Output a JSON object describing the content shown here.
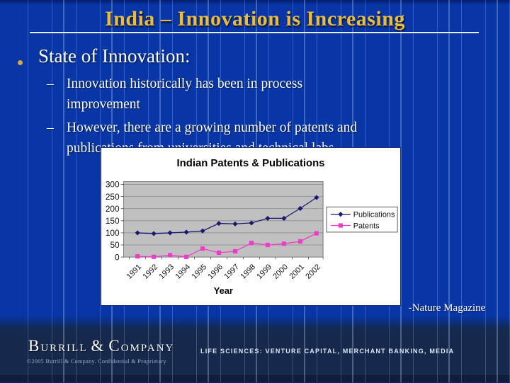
{
  "colors": {
    "background": "#0836A6",
    "footer_background": "#16294D",
    "title_gold": "#E9BC40",
    "underline": "#E8EDF8",
    "body_text": "#FFFFFF",
    "publications_series": "#191970",
    "patents_series": "#EE3CC8",
    "plot_background": "#C0C0C0"
  },
  "header": {
    "title": "India – Innovation is Increasing"
  },
  "content": {
    "bullet_label": "State of Innovation:",
    "sub_bullets": [
      {
        "marker": "–",
        "lines": [
          "Innovation historically has been in process",
          "improvement"
        ]
      },
      {
        "marker": "–",
        "lines": [
          "However, there are a growing number of patents and",
          "publications from universities and technical labs"
        ]
      }
    ],
    "attribution": "-Nature Magazine"
  },
  "chart_data": {
    "type": "line",
    "title": "Indian Patents & Publications",
    "xlabel": "Year",
    "ylabel": "",
    "categories": [
      "1991",
      "1992",
      "1993",
      "1994",
      "1995",
      "1996",
      "1997",
      "1998",
      "1999",
      "2000",
      "2001",
      "2002"
    ],
    "series": [
      {
        "name": "Publications",
        "color": "#191970",
        "marker": "diamond",
        "values": [
          100,
          97,
          100,
          103,
          108,
          139,
          137,
          141,
          160,
          160,
          201,
          246
        ]
      },
      {
        "name": "Patents",
        "color": "#EE3CC8",
        "marker": "square",
        "values": [
          3,
          1,
          8,
          1,
          35,
          18,
          24,
          58,
          50,
          55,
          65,
          98
        ]
      }
    ],
    "ylim": [
      0,
      300
    ],
    "ytick_step": 50,
    "grid": true,
    "legend_position": "right",
    "plot_bg": "#C0C0C0"
  },
  "footer": {
    "logo_b": "B",
    "logo_urrill": "URRILL",
    "logo_amp": "&",
    "logo_c": "C",
    "logo_ompany": "OMPANY",
    "copyright": "©2005 Burrill & Company. Confidential & Proprietary",
    "tagline": "LIFE SCIENCES: VENTURE CAPITAL, MERCHANT BANKING, MEDIA"
  }
}
